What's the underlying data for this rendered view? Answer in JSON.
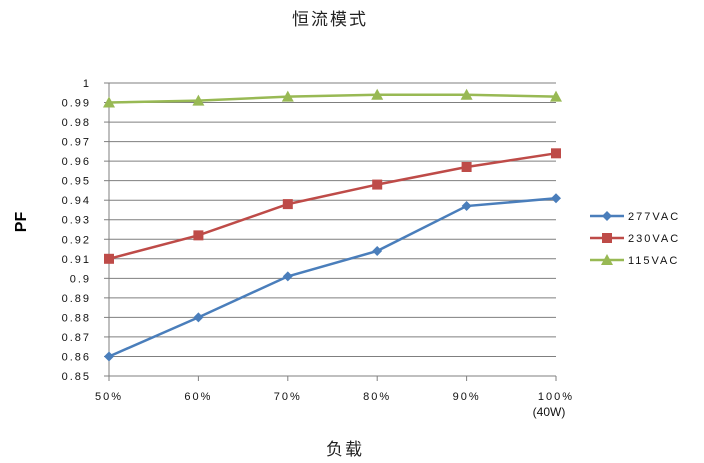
{
  "chart_data": {
    "type": "line",
    "title": "恒流模式",
    "xlabel": "负载",
    "ylabel": "PF",
    "categories": [
      "50%",
      "60%",
      "70%",
      "80%",
      "90%",
      "100%"
    ],
    "x_note": "(40W)",
    "ylim": [
      0.85,
      1.0
    ],
    "yticks": [
      "0.85",
      "0.86",
      "0.87",
      "0.88",
      "0.89",
      "0.9",
      "0.91",
      "0.92",
      "0.93",
      "0.94",
      "0.95",
      "0.96",
      "0.97",
      "0.98",
      "0.99",
      "1"
    ],
    "grid": true,
    "legend_position": "right",
    "series": [
      {
        "name": "277VAC",
        "color": "#4a7ebb",
        "marker": "diamond",
        "values": [
          0.86,
          0.88,
          0.901,
          0.914,
          0.937,
          0.941
        ]
      },
      {
        "name": "230VAC",
        "color": "#be4b48",
        "marker": "square",
        "values": [
          0.91,
          0.922,
          0.938,
          0.948,
          0.957,
          0.964
        ]
      },
      {
        "name": "115VAC",
        "color": "#98b954",
        "marker": "triangle",
        "values": [
          0.99,
          0.991,
          0.993,
          0.994,
          0.994,
          0.993
        ]
      }
    ]
  }
}
